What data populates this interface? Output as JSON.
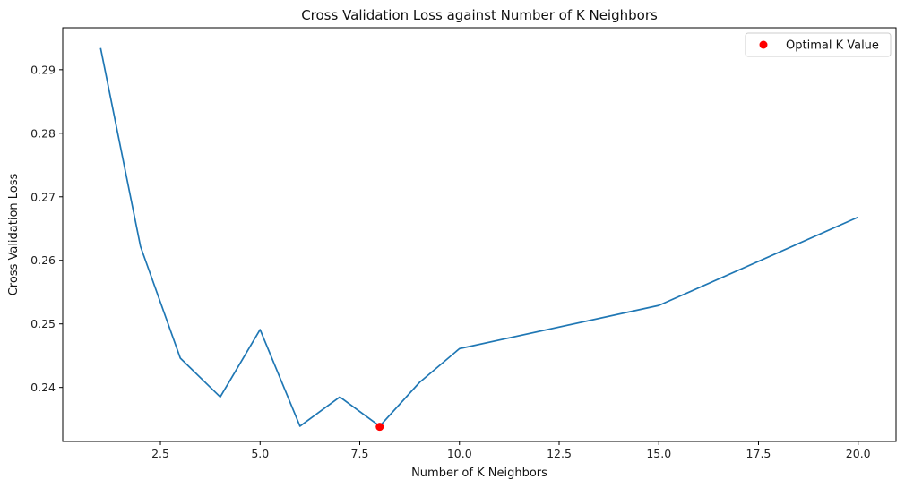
{
  "chart_data": {
    "type": "line",
    "title": "Cross Validation Loss against Number of K Neighbors",
    "xlabel": "Number of K Neighbors",
    "ylabel": "Cross Validation Loss",
    "xlim": [
      0.05,
      20.95
    ],
    "ylim": [
      0.2315,
      0.2966
    ],
    "x_ticks": [
      2.5,
      5.0,
      7.5,
      10.0,
      12.5,
      15.0,
      17.5,
      20.0
    ],
    "x_tick_labels": [
      "2.5",
      "5.0",
      "7.5",
      "10.0",
      "12.5",
      "15.0",
      "17.5",
      "20.0"
    ],
    "y_ticks": [
      0.24,
      0.25,
      0.26,
      0.27,
      0.28,
      0.29
    ],
    "y_tick_labels": [
      "0.24",
      "0.25",
      "0.26",
      "0.27",
      "0.28",
      "0.29"
    ],
    "grid": false,
    "legend_position": "top-right",
    "series": [
      {
        "type": "line",
        "color": "#1f77b4",
        "x": [
          1,
          2,
          3,
          4,
          5,
          6,
          7,
          8,
          9,
          10,
          15,
          20
        ],
        "values": [
          0.2934,
          0.2622,
          0.2446,
          0.2385,
          0.2491,
          0.2339,
          0.2385,
          0.2339,
          0.2408,
          0.2461,
          0.2529,
          0.2668
        ]
      },
      {
        "name": "Optimal K Value",
        "type": "scatter",
        "color": "#ff0000",
        "x": [
          8
        ],
        "values": [
          0.2338
        ]
      }
    ]
  }
}
